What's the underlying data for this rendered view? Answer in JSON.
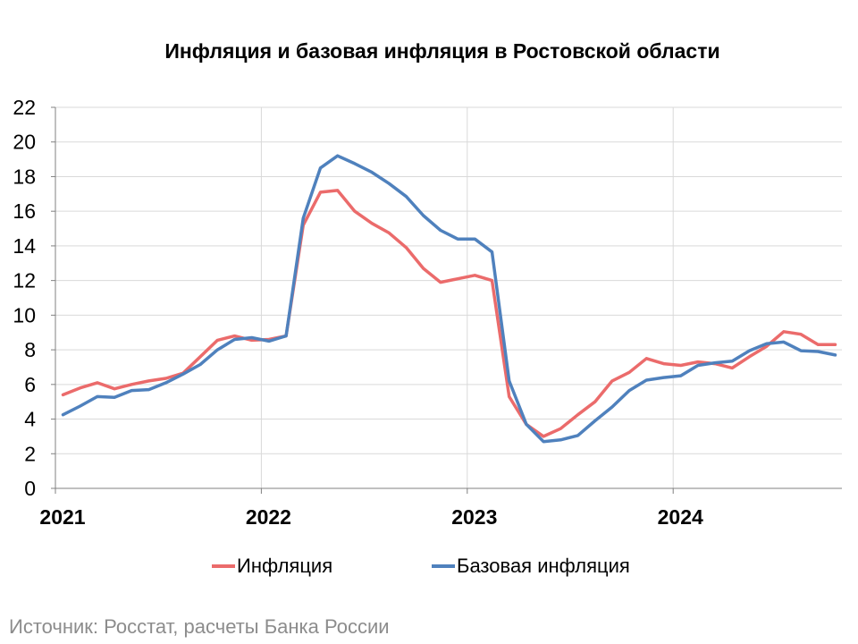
{
  "chart_data": {
    "type": "line",
    "title": "Инфляция и базовая инфляция в Ростовской области",
    "xlabel": "",
    "ylabel": "",
    "ylim": [
      0,
      22
    ],
    "yticks": [
      "0",
      "2",
      "4",
      "6",
      "8",
      "10",
      "12",
      "14",
      "16",
      "18",
      "20",
      "22"
    ],
    "xtick_labels": [
      "2021",
      "2022",
      "2023",
      "2024"
    ],
    "grid": true,
    "legend_position": "bottom",
    "x": [
      "2021-01",
      "2021-02",
      "2021-03",
      "2021-04",
      "2021-05",
      "2021-06",
      "2021-07",
      "2021-08",
      "2021-09",
      "2021-10",
      "2021-11",
      "2021-12",
      "2022-01",
      "2022-02",
      "2022-03",
      "2022-04",
      "2022-05",
      "2022-06",
      "2022-07",
      "2022-08",
      "2022-09",
      "2022-10",
      "2022-11",
      "2022-12",
      "2023-01",
      "2023-02",
      "2023-03",
      "2023-04",
      "2023-05",
      "2023-06",
      "2023-07",
      "2023-08",
      "2023-09",
      "2023-10",
      "2023-11",
      "2023-12",
      "2024-01",
      "2024-02",
      "2024-03",
      "2024-04",
      "2024-05",
      "2024-06",
      "2024-07",
      "2024-08",
      "2024-09",
      "2024-10"
    ],
    "series": [
      {
        "name": "Инфляция",
        "color": "#eb6b6b",
        "values": [
          5.4,
          5.8,
          6.1,
          5.75,
          6.0,
          6.2,
          6.35,
          6.65,
          7.6,
          8.55,
          8.8,
          8.55,
          8.6,
          8.8,
          15.2,
          17.1,
          17.2,
          16.0,
          15.3,
          14.75,
          13.9,
          12.7,
          11.9,
          12.1,
          12.3,
          12.0,
          5.3,
          3.7,
          3.0,
          3.45,
          4.25,
          5.0,
          6.2,
          6.7,
          7.5,
          7.2,
          7.1,
          7.3,
          7.2,
          6.95,
          7.6,
          8.2,
          9.05,
          8.9,
          8.3,
          8.3
        ]
      },
      {
        "name": "Базовая инфляция",
        "color": "#4f81bd",
        "values": [
          4.25,
          4.75,
          5.3,
          5.25,
          5.65,
          5.7,
          6.1,
          6.6,
          7.15,
          8.0,
          8.6,
          8.7,
          8.5,
          8.8,
          15.6,
          18.5,
          19.2,
          18.75,
          18.25,
          17.6,
          16.85,
          15.75,
          14.9,
          14.4,
          14.4,
          13.65,
          6.2,
          3.7,
          2.7,
          2.8,
          3.05,
          3.9,
          4.7,
          5.65,
          6.25,
          6.4,
          6.5,
          7.1,
          7.25,
          7.35,
          7.95,
          8.35,
          8.45,
          7.95,
          7.9,
          7.7
        ]
      }
    ]
  },
  "legend": {
    "item1": "Инфляция",
    "item2": "Базовая инфляция"
  },
  "source": "Источник: Росстат, расчеты Банка России"
}
